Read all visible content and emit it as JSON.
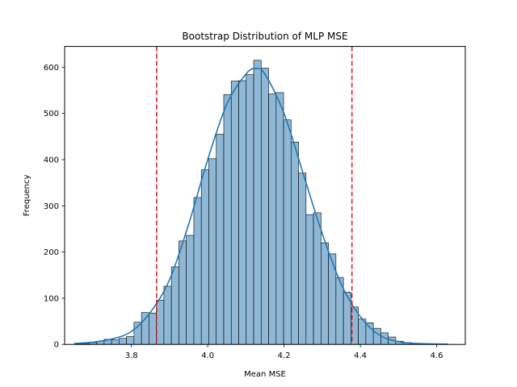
{
  "chart_data": {
    "type": "bar",
    "subtype": "histogram-with-kde",
    "title": "Bootstrap Distribution of MLP MSE",
    "xlabel": "Mean MSE",
    "ylabel": "Frequency",
    "xlim": [
      3.625,
      4.675
    ],
    "ylim": [
      0,
      645
    ],
    "xticks": [
      3.8,
      4.0,
      4.2,
      4.4,
      4.6
    ],
    "xtick_labels": [
      "3.8",
      "4.0",
      "4.2",
      "4.4",
      "4.6"
    ],
    "yticks": [
      0,
      100,
      200,
      300,
      400,
      500,
      600
    ],
    "ytick_labels": [
      "0",
      "100",
      "200",
      "300",
      "400",
      "500",
      "600"
    ],
    "grid": false,
    "legend": "none",
    "bin_start": 3.65,
    "bin_width": 0.0196,
    "bin_counts": [
      1,
      2,
      4,
      7,
      11,
      10,
      13,
      17,
      48,
      69,
      68,
      96,
      126,
      168,
      224,
      236,
      318,
      378,
      402,
      455,
      541,
      570,
      571,
      584,
      615,
      598,
      542,
      545,
      486,
      438,
      371,
      281,
      285,
      220,
      196,
      145,
      113,
      81,
      55,
      47,
      35,
      25,
      16,
      7,
      4,
      2,
      1,
      1,
      1,
      0
    ],
    "kde": {
      "x": [
        3.65,
        3.7,
        3.75,
        3.8,
        3.85,
        3.9,
        3.95,
        4.0,
        4.05,
        4.1,
        4.125,
        4.15,
        4.2,
        4.25,
        4.3,
        4.35,
        4.4,
        4.45,
        4.5,
        4.55,
        4.6,
        4.63
      ],
      "y": [
        2,
        5,
        12,
        28,
        70,
        140,
        260,
        400,
        520,
        585,
        597,
        585,
        500,
        370,
        240,
        130,
        60,
        20,
        6,
        2,
        1,
        0.5
      ]
    },
    "vlines": [
      {
        "x": 3.866,
        "style": "dashed",
        "color": "#d62728"
      },
      {
        "x": 4.378,
        "style": "dashed",
        "color": "#d62728"
      }
    ],
    "colors": {
      "bar_fill": "#8fb8d6",
      "bar_edge": "#000000",
      "kde_line": "#1f77b4",
      "vline": "#d62728"
    }
  }
}
